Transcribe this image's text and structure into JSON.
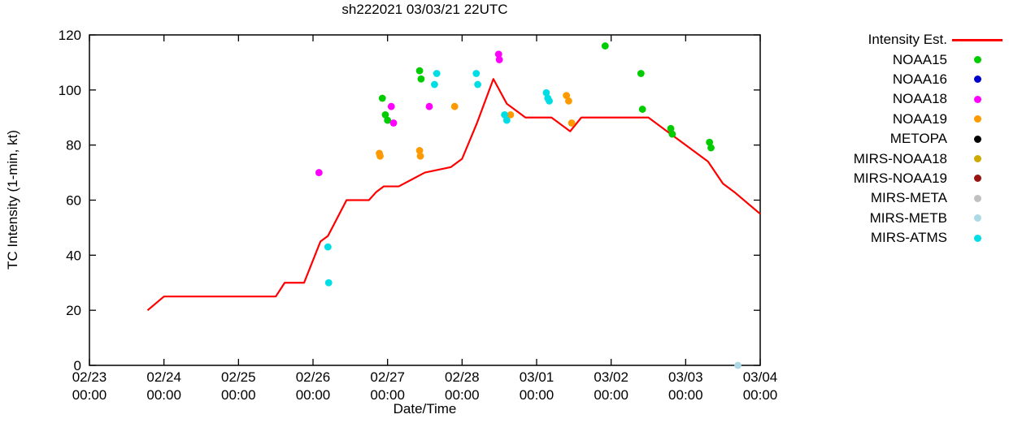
{
  "title": "sh222021 03/03/21 22UTC",
  "chart_data": {
    "type": "line+scatter",
    "title": "sh222021 03/03/21 22UTC",
    "xlabel": "Date/Time",
    "ylabel": "TC Intensity (1-min, kt)",
    "ylim": [
      0,
      120
    ],
    "y_ticks": [
      0,
      20,
      40,
      60,
      80,
      100,
      120
    ],
    "x_start": "02/23 00:00",
    "x_end": "03/04 00:00",
    "xlim_days": [
      0,
      9
    ],
    "x_ticks": [
      {
        "day": 0,
        "date": "02/23",
        "time": "00:00"
      },
      {
        "day": 1,
        "date": "02/24",
        "time": "00:00"
      },
      {
        "day": 2,
        "date": "02/25",
        "time": "00:00"
      },
      {
        "day": 3,
        "date": "02/26",
        "time": "00:00"
      },
      {
        "day": 4,
        "date": "02/27",
        "time": "00:00"
      },
      {
        "day": 5,
        "date": "02/28",
        "time": "00:00"
      },
      {
        "day": 6,
        "date": "03/01",
        "time": "00:00"
      },
      {
        "day": 7,
        "date": "03/02",
        "time": "00:00"
      },
      {
        "day": 8,
        "date": "03/03",
        "time": "00:00"
      },
      {
        "day": 9,
        "date": "03/04",
        "time": "00:00"
      }
    ],
    "grid": false,
    "legend_position": "outside-right",
    "intensity_line": {
      "name": "Intensity Est.",
      "color": "#ff0000",
      "points": [
        [
          0.78,
          20
        ],
        [
          1.0,
          25
        ],
        [
          2.5,
          25
        ],
        [
          2.62,
          30
        ],
        [
          2.88,
          30
        ],
        [
          3.1,
          45
        ],
        [
          3.2,
          47
        ],
        [
          3.45,
          60
        ],
        [
          3.75,
          60
        ],
        [
          3.85,
          63
        ],
        [
          3.95,
          65
        ],
        [
          4.15,
          65
        ],
        [
          4.5,
          70
        ],
        [
          4.85,
          72
        ],
        [
          5.0,
          75
        ],
        [
          5.2,
          88
        ],
        [
          5.42,
          104
        ],
        [
          5.6,
          95
        ],
        [
          5.85,
          90
        ],
        [
          6.2,
          90
        ],
        [
          6.45,
          85
        ],
        [
          6.6,
          90
        ],
        [
          7.5,
          90
        ],
        [
          7.75,
          85
        ],
        [
          8.0,
          80
        ],
        [
          8.3,
          74
        ],
        [
          8.5,
          66
        ],
        [
          8.65,
          63
        ],
        [
          9.0,
          55
        ]
      ]
    },
    "series": [
      {
        "name": "NOAA15",
        "color": "#00cc00",
        "points": [
          [
            3.93,
            97
          ],
          [
            3.97,
            91
          ],
          [
            4.0,
            89
          ],
          [
            4.43,
            107
          ],
          [
            4.45,
            104
          ],
          [
            6.92,
            116
          ],
          [
            7.4,
            106
          ],
          [
            7.42,
            93
          ],
          [
            7.8,
            86
          ],
          [
            7.82,
            84
          ],
          [
            8.32,
            81
          ],
          [
            8.34,
            79
          ]
        ]
      },
      {
        "name": "NOAA16",
        "color": "#0000cc",
        "points": []
      },
      {
        "name": "NOAA18",
        "color": "#ff00ff",
        "points": [
          [
            3.08,
            70
          ],
          [
            4.05,
            94
          ],
          [
            4.08,
            88
          ],
          [
            4.56,
            94
          ],
          [
            5.49,
            113
          ],
          [
            5.5,
            111
          ]
        ]
      },
      {
        "name": "NOAA19",
        "color": "#ff9900",
        "points": [
          [
            3.89,
            77
          ],
          [
            3.9,
            76
          ],
          [
            4.43,
            78
          ],
          [
            4.44,
            76
          ],
          [
            4.9,
            94
          ],
          [
            5.65,
            91
          ],
          [
            6.4,
            98
          ],
          [
            6.43,
            96
          ],
          [
            6.47,
            88
          ]
        ]
      },
      {
        "name": "METOPA",
        "color": "#000000",
        "points": []
      },
      {
        "name": "MIRS-NOAA18",
        "color": "#ccaa00",
        "points": []
      },
      {
        "name": "MIRS-NOAA19",
        "color": "#991111",
        "points": []
      },
      {
        "name": "MIRS-META",
        "color": "#c0c0c0",
        "points": []
      },
      {
        "name": "MIRS-METB",
        "color": "#add8e6",
        "points": [
          [
            8.7,
            0
          ]
        ]
      },
      {
        "name": "MIRS-ATMS",
        "color": "#00dde5",
        "points": [
          [
            3.2,
            43
          ],
          [
            3.21,
            30
          ],
          [
            4.63,
            102
          ],
          [
            4.66,
            106
          ],
          [
            5.19,
            106
          ],
          [
            5.21,
            102
          ],
          [
            5.57,
            91
          ],
          [
            5.6,
            89
          ],
          [
            6.13,
            99
          ],
          [
            6.15,
            97
          ],
          [
            6.17,
            96
          ]
        ]
      }
    ]
  }
}
